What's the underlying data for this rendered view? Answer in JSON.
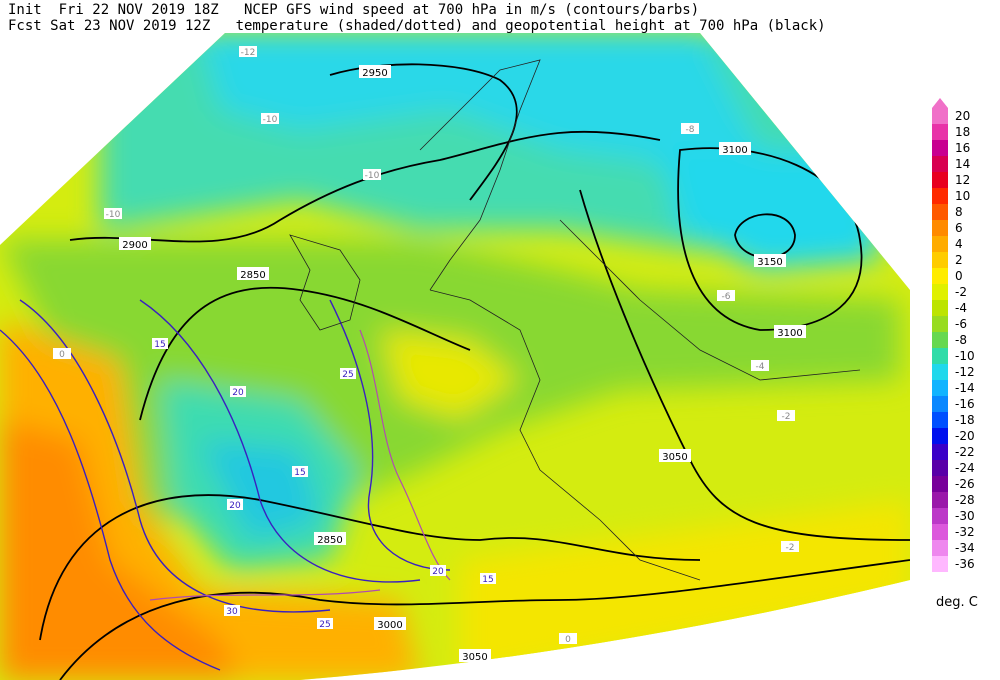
{
  "header": {
    "lines": [
      "Init  Fri 22 NOV 2019 18Z   NCEP GFS wind speed at 700 hPa in m/s (contours/barbs)",
      "Fcst Sat 23 NOV 2019 12Z   temperature (shaded/dotted) and geopotential height at 700 hPa (black)"
    ]
  },
  "height_labels": [
    "2950",
    "3100",
    "3150",
    "2900",
    "2850",
    "3100",
    "3050",
    "2850",
    "3000",
    "3050"
  ],
  "temperature_labels": [
    "-12",
    "-10",
    "-10",
    "-10",
    "-8",
    "-6",
    "-4",
    "-2",
    "-2",
    "0",
    "0"
  ],
  "wind_labels": [
    "15",
    "20",
    "25",
    "20",
    "15",
    "30",
    "25",
    "20",
    "15"
  ],
  "colorbar": {
    "labels": [
      20,
      18,
      16,
      14,
      12,
      10,
      8,
      6,
      4,
      2,
      0,
      -2,
      -4,
      -6,
      -8,
      -10,
      -12,
      -14,
      -16,
      -18,
      -20,
      -22,
      -24,
      -26,
      -28,
      -30,
      -32,
      -34,
      -36
    ],
    "colors": [
      "#f070c8",
      "#e833a8",
      "#c80090",
      "#d80050",
      "#e80020",
      "#ff2a00",
      "#ff5a00",
      "#ff8a00",
      "#ffac00",
      "#ffcc00",
      "#ffec00",
      "#e0f000",
      "#bce400",
      "#98dc20",
      "#66d850",
      "#30dca8",
      "#20d8ec",
      "#12b4ff",
      "#0a88ff",
      "#0050ff",
      "#0010ee",
      "#3a00c8",
      "#5a00a8",
      "#78009a",
      "#9a18aa",
      "#bc38c8",
      "#dc58dc",
      "#ee88ee",
      "#ffb8ff"
    ],
    "unit": "deg. C"
  }
}
